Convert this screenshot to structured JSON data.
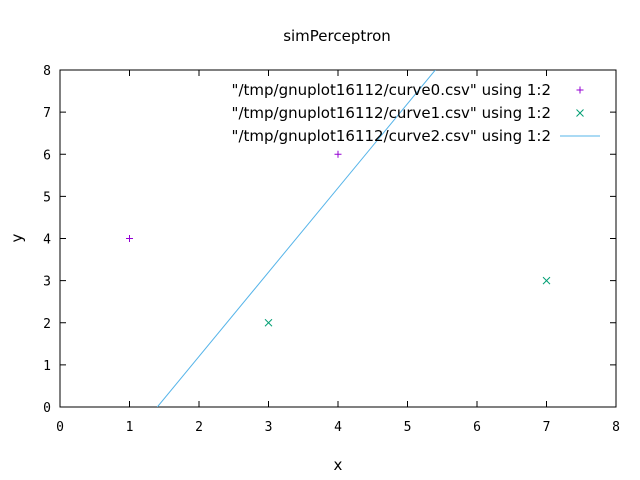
{
  "chart_data": {
    "type": "scatter",
    "title": "simPerceptron",
    "xlabel": "x",
    "ylabel": "y",
    "xlim": [
      0,
      8
    ],
    "ylim": [
      0,
      8
    ],
    "xticks": [
      0,
      1,
      2,
      3,
      4,
      5,
      6,
      7,
      8
    ],
    "yticks": [
      0,
      1,
      2,
      3,
      4,
      5,
      6,
      7,
      8
    ],
    "grid": false,
    "legend_position": "top-right",
    "series": [
      {
        "name": "\"/tmp/gnuplot16112/curve0.csv\" using 1:2",
        "kind": "points",
        "marker": "plus",
        "color": "#9400d3",
        "points": [
          [
            1,
            4
          ],
          [
            4,
            6
          ]
        ]
      },
      {
        "name": "\"/tmp/gnuplot16112/curve1.csv\" using 1:2",
        "kind": "points",
        "marker": "cross",
        "color": "#009e73",
        "points": [
          [
            3,
            2
          ],
          [
            7,
            3
          ]
        ]
      },
      {
        "name": "\"/tmp/gnuplot16112/curve2.csv\" using 1:2",
        "kind": "line",
        "color": "#56b4e9",
        "points": [
          [
            1.4,
            0
          ],
          [
            5.4,
            8
          ]
        ]
      }
    ]
  }
}
